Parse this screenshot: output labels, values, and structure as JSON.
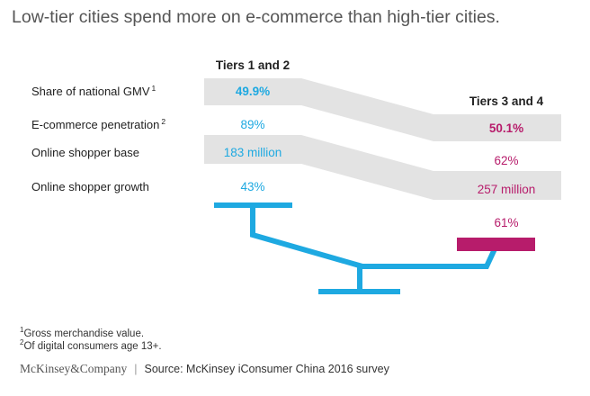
{
  "title": "Low-tier cities spend more on e-commerce than high-tier cities.",
  "chart_data": {
    "type": "table",
    "title": "Low-tier cities spend more on e-commerce than high-tier cities.",
    "columns": [
      "Tiers 1 and 2",
      "Tiers 3 and 4"
    ],
    "rows": [
      {
        "label": "Share of national GMV",
        "sup": "1",
        "values": [
          "49.9%",
          "50.1%"
        ],
        "bold": true
      },
      {
        "label": "E-commerce penetration",
        "sup": "2",
        "values": [
          "89%",
          "62%"
        ]
      },
      {
        "label": "Online shopper base",
        "values": [
          "183 million",
          "257 million"
        ]
      },
      {
        "label": "Online shopper growth",
        "values": [
          "43%",
          "61%"
        ]
      }
    ]
  },
  "colors": {
    "tier12": "#1EA9E1",
    "tier34": "#B71C6B",
    "band": "#E3E3E3",
    "label": "#222222"
  },
  "footnotes": [
    {
      "sup": "1",
      "text": "Gross merchandise value."
    },
    {
      "sup": "2",
      "text": "Of digital consumers age 13+."
    }
  ],
  "footer": {
    "brand": "McKinsey&Company",
    "separator": "|",
    "source": "Source: McKinsey iConsumer China 2016 survey"
  }
}
